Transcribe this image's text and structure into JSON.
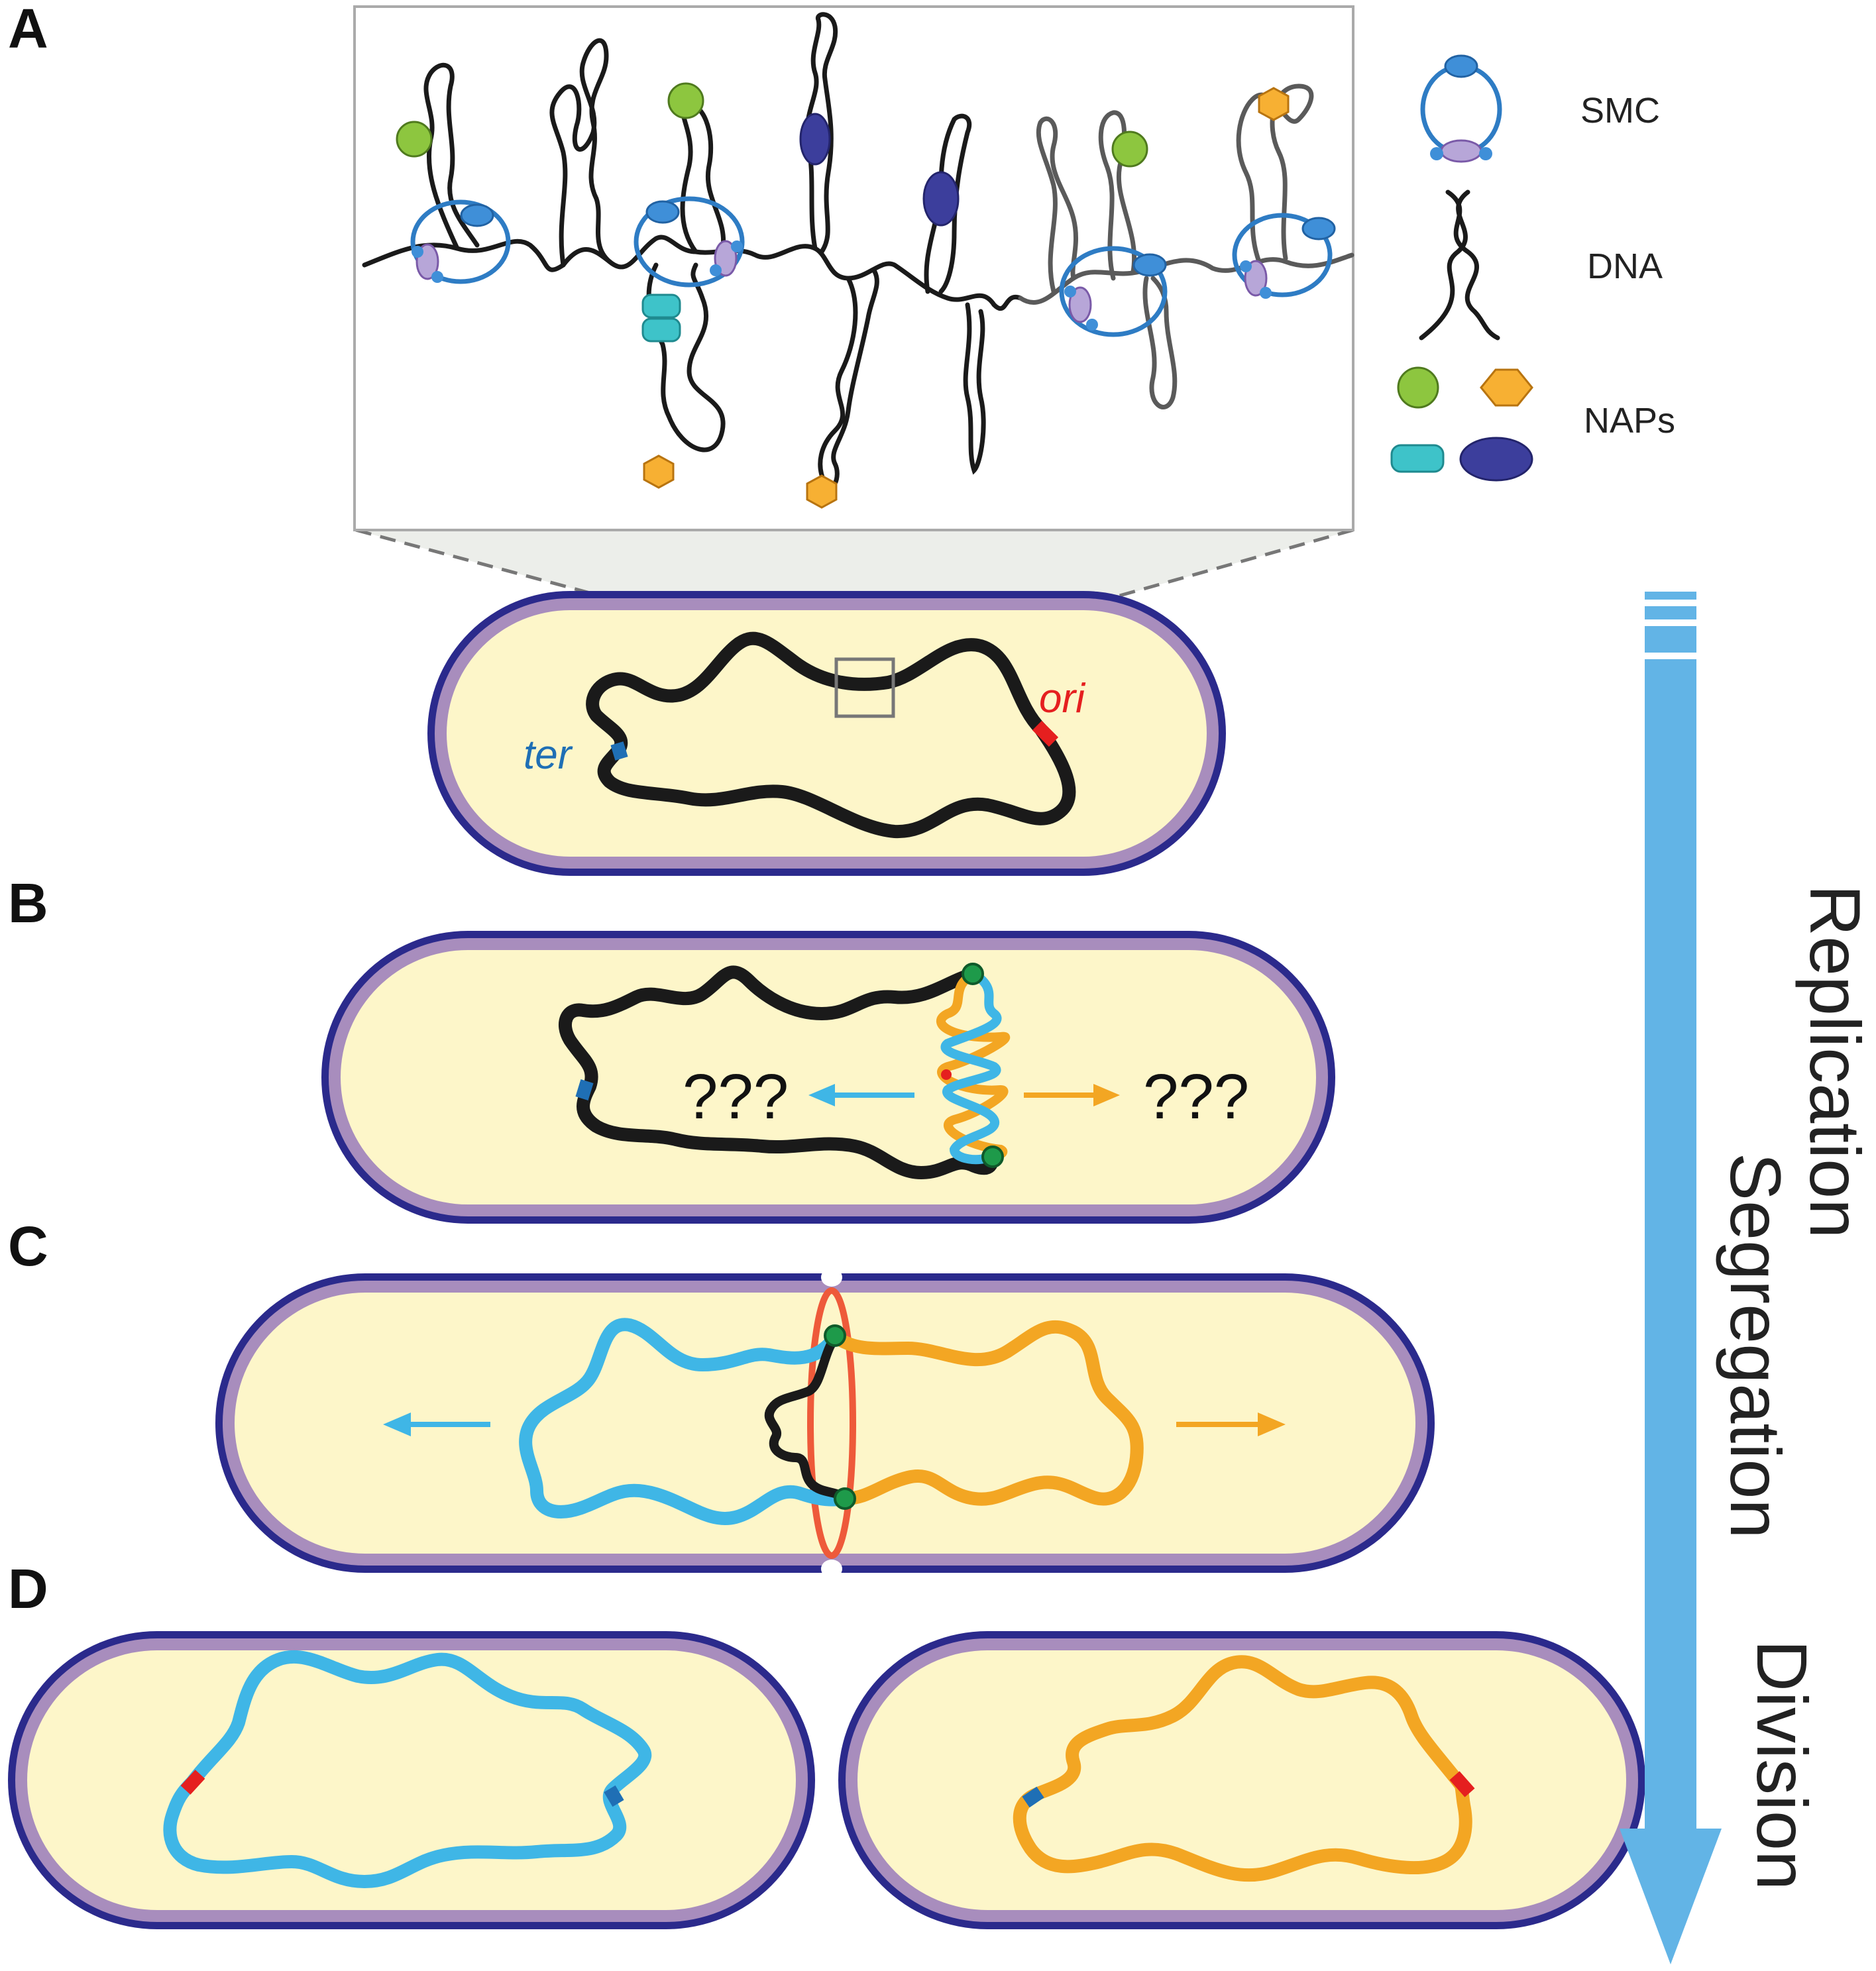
{
  "panels": {
    "a": "A",
    "b": "B",
    "c": "C",
    "d": "D"
  },
  "legend": {
    "smc": "SMC",
    "dna": "DNA",
    "naps": "NAPs"
  },
  "annotations": {
    "ter": "ter",
    "ori": "ori",
    "unknown_left": "???",
    "unknown_right": "???"
  },
  "stages": {
    "replication": "Replication",
    "segregation": "Segregation",
    "division": "Division"
  },
  "colors": {
    "cell_outer": "#2b2a8c",
    "cell_wall": "#a88dbd",
    "cytoplasm": "#fdf6c9",
    "dna": "#1a1a1a",
    "dna_gray": "#5a5a5a",
    "daughter_blue": "#3fb6e6",
    "daughter_orange": "#f3a623",
    "ori": "#e51f1f",
    "ter": "#1f6fb5",
    "smc_ring": "#2e7cc4",
    "smc_head": "#3f8fd8",
    "smc_hinge": "#b7a6d8",
    "nap_green": "#8dc63f",
    "nap_orange": "#f7b033",
    "nap_teal": "#3ec3c9",
    "nap_navy": "#3c3e9c",
    "arrow": "#62b4e6",
    "septum": "#ee5a3a",
    "replisome": "#1e9a4a"
  }
}
